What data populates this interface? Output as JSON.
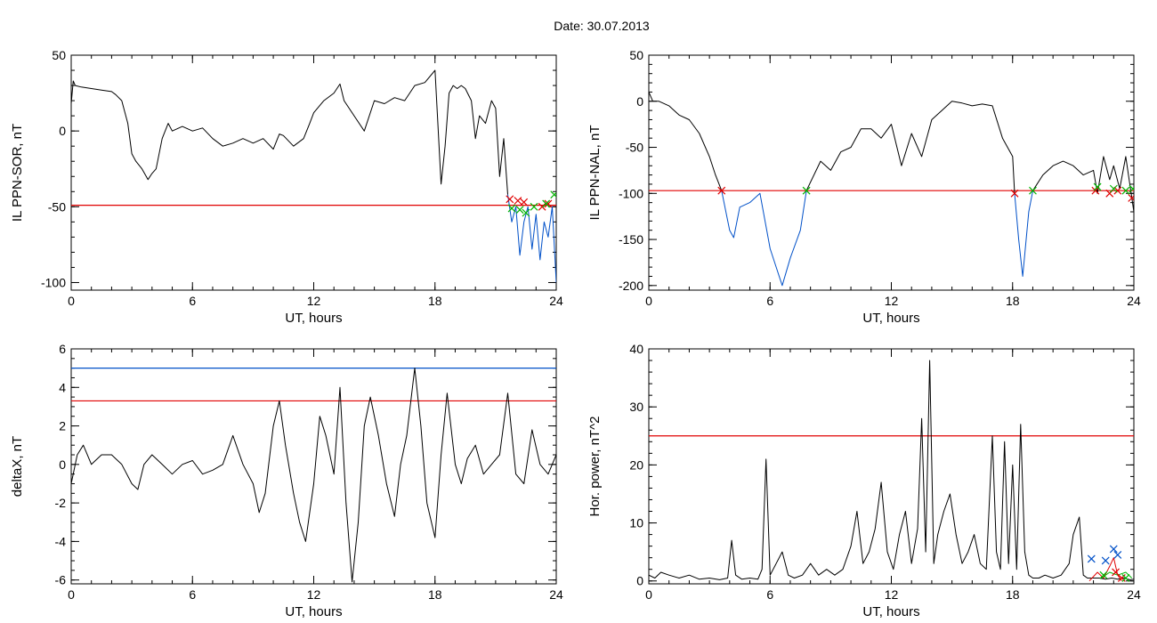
{
  "title": "Date:  30.07.2013",
  "colors": {
    "black": "#000000",
    "red": "#e00000",
    "blue": "#0050c8",
    "green": "#00b400"
  },
  "chart_data": [
    {
      "id": "p1",
      "type": "line",
      "xlabel": "UT, hours",
      "ylabel": "IL PPN-SOR, nT",
      "xlim": [
        0,
        24
      ],
      "ylim": [
        -105,
        50
      ],
      "xticks": [
        0,
        6,
        12,
        18,
        24
      ],
      "yticks": [
        -100,
        -50,
        0,
        50
      ],
      "ytick_labels": [
        "-100",
        "-50",
        "0",
        "50"
      ],
      "xtick_labels": [
        "0",
        "6",
        "12",
        "18",
        "24"
      ],
      "minor_x": 1,
      "minor_y": 10,
      "hlines": [
        {
          "y": -49,
          "color": "#e00000"
        }
      ],
      "series": [
        {
          "color": "#000000",
          "x": [
            0,
            0.1,
            0.2,
            0.5,
            1.0,
            1.5,
            2.0,
            2.2,
            2.5,
            2.8,
            3.0,
            3.2,
            3.5,
            3.8,
            4.0,
            4.2,
            4.5,
            4.8,
            5.0,
            5.5,
            6.0,
            6.5,
            7.0,
            7.5,
            8.0,
            8.5,
            9.0,
            9.5,
            10.0,
            10.3,
            10.5,
            11.0,
            11.5,
            11.8,
            12.0,
            12.5,
            13.0,
            13.3,
            13.5,
            14.0,
            14.5,
            15.0,
            15.5,
            16.0,
            16.5,
            17.0,
            17.5,
            18.0,
            18.3,
            18.5,
            18.7,
            18.9,
            19.1,
            19.3,
            19.5,
            19.8,
            20.0,
            20.2,
            20.5,
            20.8,
            21.0,
            21.2,
            21.4,
            21.6
          ],
          "y": [
            18,
            33,
            30,
            29,
            28,
            27,
            26,
            24,
            20,
            5,
            -15,
            -20,
            -25,
            -32,
            -28,
            -25,
            -5,
            5,
            0,
            3,
            0,
            2,
            -5,
            -10,
            -8,
            -5,
            -8,
            -5,
            -12,
            -2,
            -3,
            -10,
            -5,
            5,
            12,
            20,
            25,
            31,
            20,
            10,
            0,
            20,
            18,
            22,
            20,
            30,
            32,
            40,
            -35,
            -10,
            25,
            30,
            28,
            30,
            28,
            20,
            -5,
            10,
            5,
            20,
            15,
            -30,
            -5,
            -42
          ]
        },
        {
          "color": "#0050c8",
          "x": [
            21.6,
            21.8,
            22.0,
            22.2,
            22.4,
            22.6,
            22.8,
            23.0,
            23.2,
            23.4,
            23.6,
            23.8,
            24.0
          ],
          "y": [
            -42,
            -60,
            -50,
            -82,
            -60,
            -50,
            -78,
            -55,
            -85,
            -60,
            -70,
            -50,
            -100
          ]
        }
      ],
      "markers": [
        {
          "symbol": "x",
          "color": "#e00000",
          "x": [
            21.7,
            22.1,
            22.4,
            23.3,
            23.6
          ],
          "y": [
            -45,
            -46,
            -47,
            -50,
            -48
          ]
        },
        {
          "symbol": "x",
          "color": "#00b400",
          "x": [
            21.8,
            22.2,
            22.5,
            22.9,
            23.5,
            23.9
          ],
          "y": [
            -51,
            -52,
            -54,
            -50,
            -48,
            -42
          ]
        }
      ]
    },
    {
      "id": "p2",
      "type": "line",
      "xlabel": "UT, hours",
      "ylabel": "IL PPN-NAL, nT",
      "xlim": [
        0,
        24
      ],
      "ylim": [
        -205,
        50
      ],
      "xticks": [
        0,
        6,
        12,
        18,
        24
      ],
      "yticks": [
        -200,
        -150,
        -100,
        -50,
        0,
        50
      ],
      "ytick_labels": [
        "-200",
        "-150",
        "-100",
        "-50",
        "0",
        "50"
      ],
      "xtick_labels": [
        "0",
        "6",
        "12",
        "18",
        "24"
      ],
      "minor_x": 1,
      "minor_y": 10,
      "hlines": [
        {
          "y": -97,
          "color": "#e00000"
        }
      ],
      "series": [
        {
          "color": "#000000",
          "x": [
            0,
            0.2,
            0.5,
            1.0,
            1.5,
            2.0,
            2.5,
            3.0,
            3.3,
            3.6
          ],
          "y": [
            10,
            0,
            0,
            -5,
            -15,
            -20,
            -35,
            -60,
            -80,
            -97
          ]
        },
        {
          "color": "#0050c8",
          "x": [
            3.6,
            4.0,
            4.2,
            4.5,
            5.0,
            5.5,
            6.0,
            6.3,
            6.6,
            7.0,
            7.5,
            7.8
          ],
          "y": [
            -97,
            -140,
            -148,
            -115,
            -110,
            -100,
            -160,
            -180,
            -200,
            -170,
            -140,
            -97
          ]
        },
        {
          "color": "#000000",
          "x": [
            7.8,
            8.5,
            9.0,
            9.5,
            10.0,
            10.5,
            11.0,
            11.5,
            12.0,
            12.5,
            13.0,
            13.5,
            14.0,
            14.5,
            15.0,
            15.5,
            16.0,
            16.5,
            17.0,
            17.5,
            18.0,
            18.1
          ],
          "y": [
            -97,
            -65,
            -75,
            -55,
            -50,
            -30,
            -30,
            -40,
            -25,
            -70,
            -35,
            -60,
            -20,
            -10,
            0,
            -2,
            -5,
            -3,
            -5,
            -40,
            -60,
            -100
          ]
        },
        {
          "color": "#0050c8",
          "x": [
            18.1,
            18.3,
            18.5,
            18.8,
            19.0
          ],
          "y": [
            -100,
            -150,
            -190,
            -120,
            -97
          ]
        },
        {
          "color": "#000000",
          "x": [
            19.0,
            19.5,
            20.0,
            20.5,
            21.0,
            21.5,
            22.0,
            22.2,
            22.5,
            22.8,
            23.0,
            23.3,
            23.6,
            24.0
          ],
          "y": [
            -97,
            -80,
            -70,
            -65,
            -70,
            -80,
            -75,
            -100,
            -60,
            -85,
            -70,
            -95,
            -60,
            -120
          ]
        }
      ],
      "markers": [
        {
          "symbol": "x",
          "color": "#e00000",
          "x": [
            3.6,
            18.1,
            22.1,
            22.8,
            23.2,
            23.9
          ],
          "y": [
            -97,
            -100,
            -97,
            -100,
            -97,
            -105
          ]
        },
        {
          "symbol": "x",
          "color": "#00b400",
          "x": [
            7.8,
            19.0,
            22.2,
            23.0,
            23.6,
            23.95
          ],
          "y": [
            -97,
            -97,
            -93,
            -95,
            -97,
            -95
          ]
        }
      ]
    },
    {
      "id": "p3",
      "type": "line",
      "xlabel": "UT, hours",
      "ylabel": "deltaX, nT",
      "xlim": [
        0,
        24
      ],
      "ylim": [
        -6.2,
        6
      ],
      "xticks": [
        0,
        6,
        12,
        18,
        24
      ],
      "yticks": [
        -6,
        -4,
        -2,
        0,
        2,
        4,
        6
      ],
      "ytick_labels": [
        "-6",
        "-4",
        "-2",
        "0",
        "2",
        "4",
        "6"
      ],
      "xtick_labels": [
        "0",
        "6",
        "12",
        "18",
        "24"
      ],
      "minor_x": 1,
      "minor_y": 0.5,
      "hlines": [
        {
          "y": 5.0,
          "color": "#0050c8"
        },
        {
          "y": 3.3,
          "color": "#e00000"
        }
      ],
      "series": [
        {
          "color": "#000000",
          "x": [
            0,
            0.3,
            0.6,
            1.0,
            1.5,
            2.0,
            2.5,
            3.0,
            3.3,
            3.6,
            4.0,
            4.5,
            5.0,
            5.5,
            6.0,
            6.5,
            7.0,
            7.5,
            8.0,
            8.5,
            9.0,
            9.3,
            9.6,
            10.0,
            10.3,
            10.6,
            11.0,
            11.3,
            11.6,
            12.0,
            12.3,
            12.6,
            13.0,
            13.3,
            13.6,
            13.9,
            14.2,
            14.5,
            14.8,
            15.2,
            15.6,
            16.0,
            16.3,
            16.6,
            17.0,
            17.3,
            17.6,
            18.0,
            18.3,
            18.6,
            19.0,
            19.3,
            19.6,
            20.0,
            20.4,
            20.8,
            21.2,
            21.6,
            22.0,
            22.4,
            22.8,
            23.2,
            23.6,
            24.0
          ],
          "y": [
            -1,
            0.5,
            1,
            0,
            0.5,
            0.5,
            0,
            -1,
            -1.3,
            0,
            0.5,
            0,
            -0.5,
            0,
            0.2,
            -0.5,
            -0.3,
            0,
            1.5,
            0,
            -1,
            -2.5,
            -1.5,
            2,
            3.3,
            1,
            -1.5,
            -3,
            -4,
            -1,
            2.5,
            1.5,
            -0.5,
            4,
            -2,
            -6.1,
            -3,
            2,
            3.5,
            1.5,
            -1,
            -2.7,
            0,
            1.5,
            5,
            2,
            -2,
            -3.8,
            0.5,
            3.7,
            0,
            -1,
            0.3,
            1,
            -0.5,
            0,
            0.5,
            3.7,
            -0.5,
            -1,
            1.8,
            0,
            -0.5,
            0.5
          ]
        }
      ],
      "markers": []
    },
    {
      "id": "p4",
      "type": "line",
      "xlabel": "UT, hours",
      "ylabel": "Hor. power, nT^2",
      "xlim": [
        0,
        24
      ],
      "ylim": [
        -0.5,
        40
      ],
      "xticks": [
        0,
        6,
        12,
        18,
        24
      ],
      "yticks": [
        0,
        10,
        20,
        30,
        40
      ],
      "ytick_labels": [
        "0",
        "10",
        "20",
        "30",
        "40"
      ],
      "xtick_labels": [
        "0",
        "6",
        "12",
        "18",
        "24"
      ],
      "minor_x": 1,
      "minor_y": 2,
      "hlines": [
        {
          "y": 25,
          "color": "#e00000"
        }
      ],
      "series": [
        {
          "color": "#000000",
          "x": [
            0,
            0.3,
            0.6,
            1.0,
            1.5,
            2.0,
            2.5,
            3.0,
            3.5,
            3.9,
            4.1,
            4.3,
            4.6,
            5.0,
            5.4,
            5.6,
            5.8,
            6.0,
            6.3,
            6.6,
            6.9,
            7.2,
            7.6,
            8.0,
            8.4,
            8.8,
            9.2,
            9.6,
            10.0,
            10.3,
            10.6,
            10.9,
            11.2,
            11.5,
            11.8,
            12.1,
            12.4,
            12.7,
            13.0,
            13.3,
            13.5,
            13.7,
            13.9,
            14.1,
            14.3,
            14.6,
            14.9,
            15.2,
            15.5,
            15.8,
            16.1,
            16.4,
            16.7,
            17.0,
            17.2,
            17.4,
            17.6,
            17.8,
            18.0,
            18.2,
            18.4,
            18.6,
            18.8,
            19.0,
            19.3,
            19.6,
            20.0,
            20.4,
            20.8,
            21.0,
            21.3,
            21.5,
            21.7,
            22.0,
            22.3,
            22.6,
            22.9,
            23.2,
            23.5,
            23.8,
            24.0
          ],
          "y": [
            1,
            0.5,
            1.5,
            1,
            0.5,
            1,
            0.3,
            0.5,
            0.2,
            0.5,
            7,
            1,
            0.3,
            0.5,
            0.3,
            2,
            21,
            1,
            3,
            5,
            1,
            0.5,
            1,
            3,
            1,
            2,
            1,
            2,
            6,
            12,
            3,
            5,
            9,
            17,
            5,
            2,
            8,
            12,
            3,
            9,
            28,
            5,
            38,
            3,
            8,
            12,
            15,
            8,
            3,
            5,
            8,
            3,
            2,
            25,
            5,
            2,
            24,
            3,
            20,
            2,
            27,
            5,
            1,
            0.5,
            0.5,
            1,
            0.5,
            1,
            3,
            8,
            11,
            1,
            0.5,
            0.5,
            0.5,
            0.3,
            0.5,
            0.3,
            0.5,
            0.2,
            0.3
          ]
        },
        {
          "color": "#e00000",
          "x": [
            21.8,
            22.2,
            22.5,
            22.8,
            23.0,
            23.2,
            23.4
          ],
          "y": [
            0,
            1.5,
            0.5,
            2.5,
            4,
            1,
            0
          ]
        },
        {
          "color": "#00b400",
          "x": [
            22.4,
            22.8,
            23.2,
            23.6,
            23.9
          ],
          "y": [
            0.5,
            1.5,
            1,
            1.5,
            0.5
          ]
        }
      ],
      "markers": [
        {
          "symbol": "x",
          "color": "#0050c8",
          "x": [
            21.9,
            22.6,
            23.0,
            23.2
          ],
          "y": [
            3.8,
            3.5,
            5.5,
            4.5
          ]
        },
        {
          "symbol": "x",
          "color": "#e00000",
          "x": [
            23.1,
            23.4
          ],
          "y": [
            1.5,
            0.5
          ]
        },
        {
          "symbol": "x",
          "color": "#00b400",
          "x": [
            22.5,
            23.6
          ],
          "y": [
            1,
            0.5
          ]
        }
      ]
    }
  ]
}
